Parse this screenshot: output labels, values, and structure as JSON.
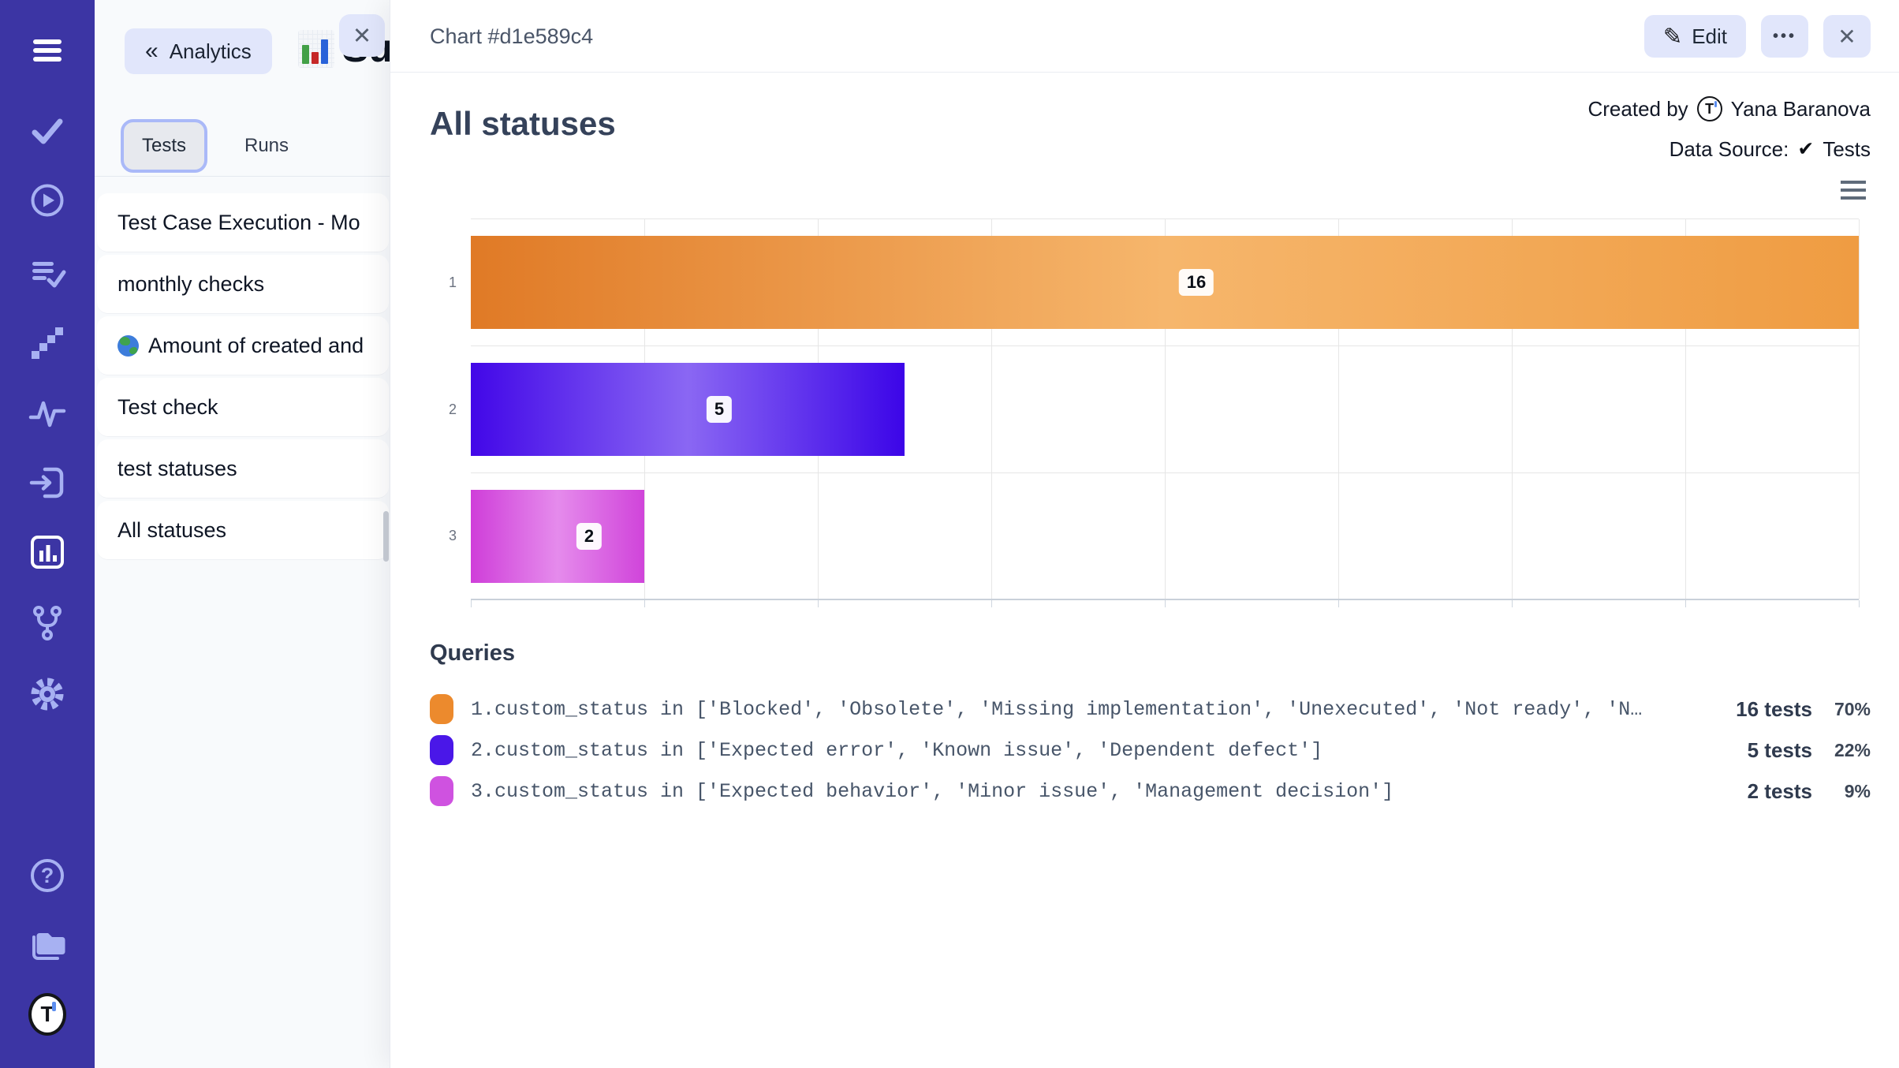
{
  "colors": {
    "sidebar_bg": "#3c35a4",
    "sidebar_icon": "#a7b1f2",
    "accent_lavender": "#e1e6fb",
    "panel_bg": "#f8fafc"
  },
  "brand": {
    "logo_letter": "T"
  },
  "sidebar": {
    "icons": [
      "menu",
      "check",
      "play-circle",
      "list-check",
      "steps",
      "activity",
      "sign-in",
      "bar-chart",
      "git-fork",
      "gear",
      "help",
      "folders",
      "testomat-logo"
    ],
    "active_icon": "bar-chart"
  },
  "left_panel": {
    "back_chevron": "«",
    "back_button_label": "Analytics",
    "close_label": "✕",
    "hidden_text_fragment": "Su",
    "tabs": [
      {
        "label": "Tests",
        "selected": true
      },
      {
        "label": "Runs",
        "selected": false
      }
    ],
    "items": [
      {
        "label": "Test Case Execution - Mo",
        "icon": null
      },
      {
        "label": "monthly checks",
        "icon": null
      },
      {
        "label": "Amount of created and",
        "icon": "globe-icon"
      },
      {
        "label": "Test check",
        "icon": null
      },
      {
        "label": "test statuses",
        "icon": null
      },
      {
        "label": "All statuses",
        "icon": null
      }
    ]
  },
  "modal": {
    "title": "Chart #d1e589c4",
    "edit_label": "Edit",
    "edit_icon": "✎",
    "more_label": "•••",
    "close_label": "✕",
    "created_by_label": "Created by",
    "author": "Yana Baranova",
    "data_source_label": "Data Source:",
    "data_source_check": "✔",
    "data_source_value": "Tests",
    "chart_title": "All statuses"
  },
  "chart_data": {
    "type": "bar",
    "orientation": "horizontal",
    "title": "All statuses",
    "categories": [
      "1",
      "2",
      "3"
    ],
    "values": [
      16,
      5,
      2
    ],
    "data_labels": [
      "16",
      "5",
      "2"
    ],
    "xlim": [
      0,
      16
    ],
    "grid_step": 2,
    "grid": true,
    "legend_position": "none",
    "bar_gradients": [
      [
        "#e07a26",
        "#f6b66c",
        "#ef9c42"
      ],
      [
        "#4207e8",
        "#8a67f3",
        "#3c05e8"
      ],
      [
        "#cf3ed9",
        "#e58bec",
        "#d044da"
      ]
    ]
  },
  "queries": {
    "heading": "Queries",
    "rows": [
      {
        "color": "#ec8a2d",
        "query": "1.custom_status in ['Blocked', 'Obsolete', 'Missing implementation', 'Unexecuted', 'Not ready', 'N…",
        "tests": "16 tests",
        "percent": "70%"
      },
      {
        "color": "#4a17e8",
        "query": "2.custom_status in ['Expected error', 'Known issue', 'Dependent defect']",
        "tests": "5 tests",
        "percent": "22%"
      },
      {
        "color": "#cf52e0",
        "query": "3.custom_status in ['Expected behavior', 'Minor issue', 'Management decision']",
        "tests": "2 tests",
        "percent": "9%"
      }
    ]
  }
}
